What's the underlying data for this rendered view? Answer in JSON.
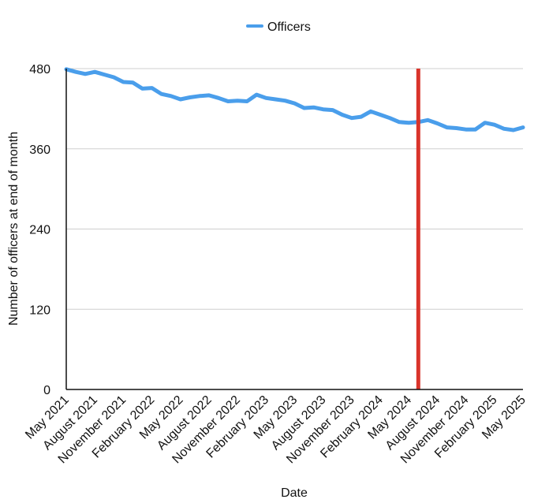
{
  "chart_data": {
    "type": "line",
    "legend": {
      "position": "top-center"
    },
    "ylabel": "Number of officers at end of month",
    "xlabel": "Date",
    "ylim": [
      0,
      480
    ],
    "yticks": [
      0,
      120,
      240,
      360,
      480
    ],
    "grid": true,
    "x_tick_labels": [
      "May 2021",
      "August 2021",
      "November 2021",
      "February 2022",
      "May 2022",
      "August 2022",
      "November 2022",
      "February 2023",
      "May 2023",
      "August 2023",
      "November 2023",
      "February 2024",
      "May 2024",
      "August 2024",
      "November 2024",
      "February 2025",
      "May 2025"
    ],
    "reference_line": {
      "x_month_index": 37,
      "color": "#d9342b"
    },
    "series": [
      {
        "name": "Officers",
        "color": "#4a9eeb",
        "values": [
          479,
          475,
          472,
          475,
          471,
          467,
          460,
          459,
          450,
          451,
          442,
          439,
          434,
          437,
          439,
          440,
          436,
          431,
          432,
          431,
          441,
          436,
          434,
          432,
          428,
          421,
          422,
          419,
          418,
          411,
          406,
          408,
          416,
          411,
          406,
          400,
          399,
          400,
          403,
          398,
          392,
          391,
          389,
          389,
          399,
          396,
          390,
          388,
          392
        ]
      }
    ]
  }
}
